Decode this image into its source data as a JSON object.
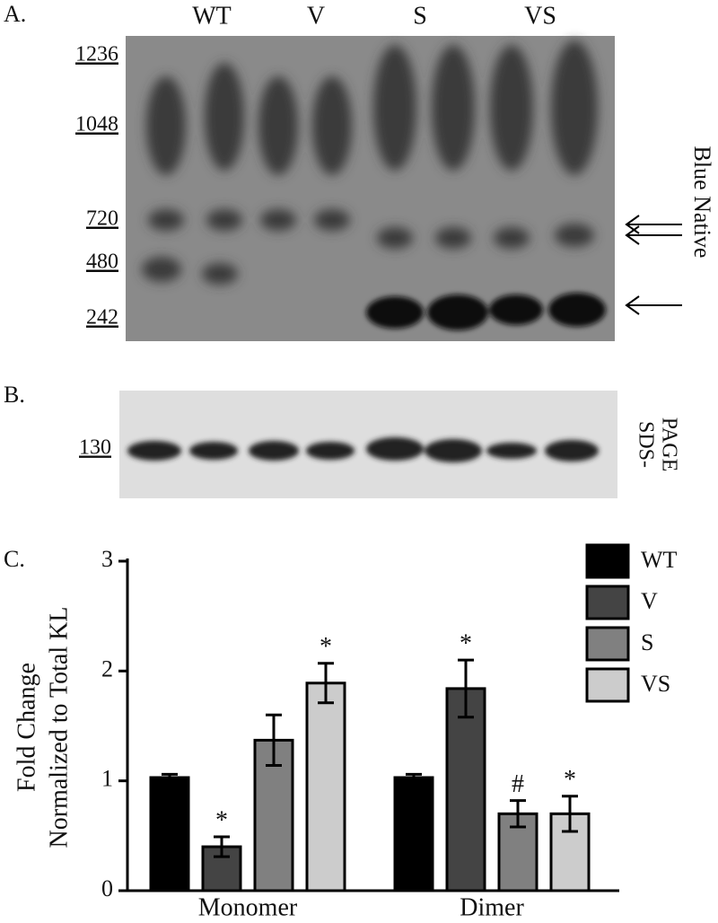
{
  "panels": {
    "a": {
      "label": "A.",
      "lanes": [
        "WT",
        "V",
        "S",
        "VS"
      ],
      "markers": [
        "1236",
        "1048",
        "720",
        "480",
        "242"
      ],
      "side_label": "Blue Native"
    },
    "b": {
      "label": "B.",
      "marker": "130",
      "side_label": [
        "SDS-",
        "PAGE"
      ]
    },
    "c": {
      "label": "C."
    }
  },
  "chart_data": {
    "type": "bar",
    "y_label": [
      "Fold Change",
      "Normalized to Total KL"
    ],
    "categories": [
      "Monomer",
      "Dimer"
    ],
    "series": [
      {
        "name": "WT",
        "color": "#000000",
        "values": [
          1.03,
          1.03
        ],
        "errors": [
          0.03,
          0.03
        ],
        "annotations": [
          null,
          null
        ]
      },
      {
        "name": "V",
        "color": "#444444",
        "values": [
          0.4,
          1.84
        ],
        "errors": [
          0.09,
          0.26
        ],
        "annotations": [
          "*",
          "*"
        ]
      },
      {
        "name": "S",
        "color": "#808080",
        "values": [
          1.37,
          0.7
        ],
        "errors": [
          0.23,
          0.12
        ],
        "annotations": [
          null,
          "#"
        ]
      },
      {
        "name": "VS",
        "color": "#cccccc",
        "values": [
          1.89,
          0.7
        ],
        "errors": [
          0.18,
          0.16
        ],
        "annotations": [
          "*",
          "*"
        ]
      }
    ],
    "ylim": [
      0,
      3
    ],
    "yticks": [
      0,
      1,
      2,
      3
    ],
    "legend": "top-right"
  }
}
